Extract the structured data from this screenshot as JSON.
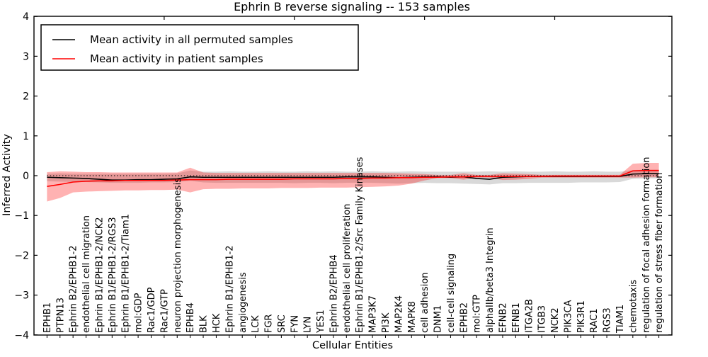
{
  "title": "Ephrin B reverse signaling -- 153 samples",
  "chart_data": {
    "type": "line",
    "title": "Ephrin B reverse signaling -- 153 samples",
    "xlabel": "Cellular Entities",
    "ylabel": "Inferred Activity",
    "ylim": [
      -4,
      4
    ],
    "yticks": [
      4,
      3,
      2,
      1,
      0,
      -1,
      -2,
      -3,
      -4
    ],
    "ytick_labels": [
      "4",
      "3",
      "2",
      "1",
      "0",
      "−1",
      "−2",
      "−3",
      "−4"
    ],
    "grid": false,
    "legend_position": "upper left",
    "zero_reference_line": {
      "value": 0,
      "style": "dotted",
      "color": "#000000"
    },
    "categories": [
      "EPHB1",
      "PTPN13",
      "Ephrin B2/EPHB1-2",
      "endothelial cell migration",
      "Ephrin B1/EPHB1-2/NCK2",
      "Ephrin B1/EPHB1-2/RGS3",
      "Ephrin B1/EPHB1-2/Tiam1",
      "mol:GDP",
      "Rac1/GDP",
      "Rac1/GTP",
      "neuron projection morphogenesis",
      "EPHB4",
      "BLK",
      "HCK",
      "Ephrin B1/EPHB1-2",
      "angiogenesis",
      "LCK",
      "FGR",
      "SRC",
      "FYN",
      "LYN",
      "YES1",
      "Ephrin B2/EPHB4",
      "endothelial cell proliferation",
      "Ephrin B1/EPHB1-2/Src Family Kinases",
      "MAP3K7",
      "PI3K",
      "MAP2K4",
      "MAPK8",
      "cell adhesion",
      "DNM1",
      "cell-cell signaling",
      "EPHB2",
      "mol:GTP",
      "alphaIIb/beta3 Integrin",
      "EFNB2",
      "EFNB1",
      "ITGA2B",
      "ITGB3",
      "NCK2",
      "PIK3CA",
      "PIK3R1",
      "RAC1",
      "RGS3",
      "TIAM1",
      "chemotaxis",
      "regulation of focal adhesion formation",
      "regulation of stress fiber formation"
    ],
    "series": [
      {
        "name": "Mean activity in all permuted samples",
        "color": "#000000",
        "band_color": "#000000",
        "band_opacity": 0.15,
        "values": [
          -0.04,
          -0.05,
          -0.06,
          -0.07,
          -0.09,
          -0.11,
          -0.11,
          -0.1,
          -0.1,
          -0.09,
          -0.08,
          -0.03,
          -0.04,
          -0.04,
          -0.04,
          -0.04,
          -0.04,
          -0.04,
          -0.04,
          -0.04,
          -0.04,
          -0.04,
          -0.04,
          -0.03,
          -0.03,
          -0.03,
          -0.04,
          -0.05,
          -0.04,
          -0.03,
          -0.03,
          -0.04,
          -0.03,
          -0.07,
          -0.09,
          -0.04,
          -0.03,
          -0.02,
          -0.02,
          -0.02,
          -0.02,
          -0.02,
          -0.02,
          -0.02,
          -0.02,
          0.04,
          0.05,
          0.05
        ],
        "band_upper": [
          0.05,
          0.06,
          0.05,
          0.05,
          0.05,
          0.05,
          0.05,
          0.05,
          0.05,
          0.05,
          0.06,
          0.13,
          0.1,
          0.1,
          0.11,
          0.1,
          0.1,
          0.11,
          0.1,
          0.1,
          0.11,
          0.1,
          0.11,
          0.1,
          0.1,
          0.11,
          0.1,
          0.1,
          0.11,
          0.1,
          0.1,
          0.1,
          0.1,
          0.1,
          0.11,
          0.1,
          0.11,
          0.1,
          0.1,
          0.11,
          0.1,
          0.1,
          0.11,
          0.1,
          0.1,
          0.14,
          0.15,
          0.15
        ],
        "band_lower": [
          -0.14,
          -0.15,
          -0.16,
          -0.16,
          -0.17,
          -0.18,
          -0.18,
          -0.18,
          -0.17,
          -0.17,
          -0.16,
          -0.13,
          -0.17,
          -0.18,
          -0.18,
          -0.18,
          -0.18,
          -0.18,
          -0.18,
          -0.19,
          -0.18,
          -0.18,
          -0.19,
          -0.18,
          -0.18,
          -0.18,
          -0.19,
          -0.2,
          -0.19,
          -0.18,
          -0.19,
          -0.19,
          -0.2,
          -0.21,
          -0.22,
          -0.19,
          -0.19,
          -0.18,
          -0.18,
          -0.18,
          -0.18,
          -0.17,
          -0.17,
          -0.17,
          -0.16,
          -0.08,
          -0.07,
          -0.07
        ]
      },
      {
        "name": "Mean activity in patient samples",
        "color": "#ff0000",
        "band_color": "#ff0000",
        "band_opacity": 0.3,
        "values": [
          -0.27,
          -0.22,
          -0.16,
          -0.14,
          -0.13,
          -0.13,
          -0.12,
          -0.12,
          -0.12,
          -0.12,
          -0.11,
          -0.1,
          -0.1,
          -0.1,
          -0.09,
          -0.09,
          -0.09,
          -0.09,
          -0.09,
          -0.08,
          -0.08,
          -0.08,
          -0.08,
          -0.07,
          -0.07,
          -0.06,
          -0.06,
          -0.05,
          -0.05,
          -0.04,
          -0.04,
          -0.03,
          -0.03,
          -0.02,
          -0.02,
          -0.02,
          -0.02,
          -0.02,
          -0.02,
          -0.01,
          -0.01,
          -0.01,
          -0.01,
          -0.01,
          -0.01,
          0.12,
          0.13,
          0.13
        ],
        "band_upper": [
          0.09,
          0.11,
          0.1,
          0.09,
          0.09,
          0.08,
          0.08,
          0.08,
          0.08,
          0.08,
          0.08,
          0.2,
          0.08,
          0.07,
          0.07,
          0.07,
          0.07,
          0.07,
          0.07,
          0.07,
          0.07,
          0.07,
          0.07,
          0.07,
          0.07,
          0.07,
          0.07,
          0.06,
          0.05,
          0.04,
          0.02,
          0.02,
          0.06,
          0.02,
          0.02,
          0.06,
          0.05,
          0.04,
          0.02,
          0.02,
          0.02,
          0.02,
          0.02,
          0.02,
          0.02,
          0.3,
          0.32,
          0.32
        ],
        "band_lower": [
          -0.65,
          -0.56,
          -0.42,
          -0.4,
          -0.39,
          -0.38,
          -0.37,
          -0.37,
          -0.36,
          -0.36,
          -0.35,
          -0.42,
          -0.34,
          -0.33,
          -0.33,
          -0.32,
          -0.32,
          -0.32,
          -0.31,
          -0.31,
          -0.31,
          -0.3,
          -0.3,
          -0.3,
          -0.29,
          -0.28,
          -0.27,
          -0.25,
          -0.2,
          -0.12,
          -0.06,
          -0.06,
          -0.1,
          -0.05,
          -0.05,
          -0.11,
          -0.1,
          -0.08,
          -0.05,
          -0.05,
          -0.05,
          -0.05,
          -0.05,
          -0.05,
          -0.05,
          -0.05,
          -0.04,
          -0.04
        ]
      }
    ],
    "top_axis_tick_values": [
      10,
      20,
      30,
      40
    ]
  },
  "colors": {
    "background": "#ffffff",
    "frame": "#000000",
    "permuted_line": "#000000",
    "patient_line": "#ff0000",
    "permuted_band": "#dcdcdc",
    "patient_band": "#f7b2b2"
  }
}
